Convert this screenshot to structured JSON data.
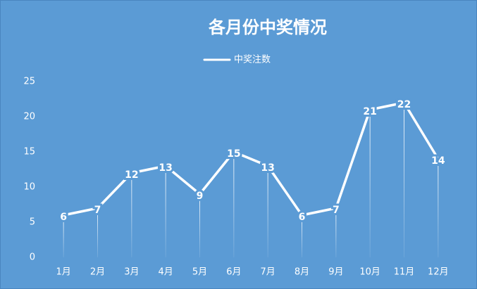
{
  "chart_data": {
    "type": "line",
    "title": "各月份中奖情况",
    "categories": [
      "1月",
      "2月",
      "3月",
      "4月",
      "5月",
      "6月",
      "7月",
      "8月",
      "9月",
      "10月",
      "11月",
      "12月"
    ],
    "series": [
      {
        "name": "中奖注数",
        "color": "#ffffff",
        "values": [
          6,
          7,
          12,
          13,
          9,
          15,
          13,
          6,
          7,
          21,
          22,
          14
        ]
      }
    ],
    "ylim": [
      0,
      25
    ],
    "yticks": [
      0,
      5,
      10,
      15,
      20,
      25
    ],
    "grid": false,
    "drop_lines": true,
    "legend": "top"
  }
}
